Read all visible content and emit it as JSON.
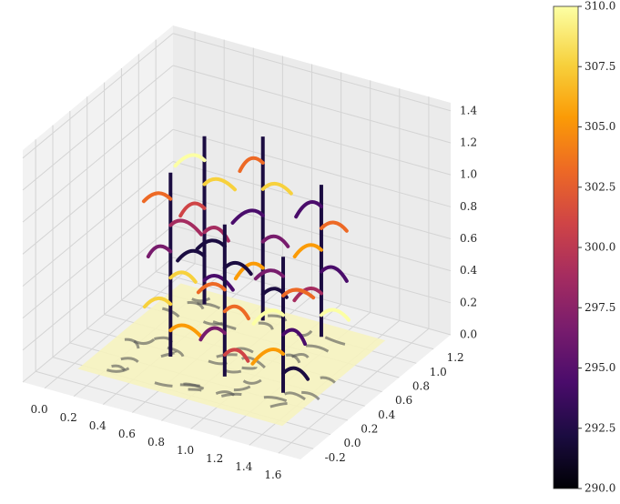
{
  "chart_data": {
    "type": "surface3d",
    "colormap": "inferno",
    "xlim": [
      -0.15,
      1.75
    ],
    "ylim": [
      -0.35,
      1.4
    ],
    "zlim": [
      0,
      1.45
    ],
    "xticks": [
      {
        "value": 0,
        "label": "0.0"
      },
      {
        "value": 0.2,
        "label": "0.2"
      },
      {
        "value": 0.4,
        "label": "0.4"
      },
      {
        "value": 0.6,
        "label": "0.6"
      },
      {
        "value": 0.8,
        "label": "0.8"
      },
      {
        "value": 1.0,
        "label": "1.0"
      },
      {
        "value": 1.2,
        "label": "1.2"
      },
      {
        "value": 1.4,
        "label": "1.4"
      },
      {
        "value": 1.6,
        "label": "1.6"
      }
    ],
    "yticks": [
      {
        "value": -0.2,
        "label": "-0.2"
      },
      {
        "value": 0,
        "label": "0.0"
      },
      {
        "value": 0.2,
        "label": "0.2"
      },
      {
        "value": 0.4,
        "label": "0.4"
      },
      {
        "value": 0.6,
        "label": "0.6"
      },
      {
        "value": 0.8,
        "label": "0.8"
      },
      {
        "value": 1.0,
        "label": "1.0"
      },
      {
        "value": 1.2,
        "label": "1.2"
      }
    ],
    "zticks": [
      {
        "value": 0,
        "label": "0.0"
      },
      {
        "value": 0.2,
        "label": "0.2"
      },
      {
        "value": 0.4,
        "label": "0.4"
      },
      {
        "value": 0.6,
        "label": "0.6"
      },
      {
        "value": 0.8,
        "label": "0.8"
      },
      {
        "value": 1.0,
        "label": "1.0"
      },
      {
        "value": 1.2,
        "label": "1.2"
      },
      {
        "value": 1.4,
        "label": "1.4"
      }
    ],
    "colorbar": {
      "clim": [
        290,
        310
      ],
      "ticks": [
        {
          "value": 290,
          "label": "290.0"
        },
        {
          "value": 292.5,
          "label": "292.5"
        },
        {
          "value": 295,
          "label": "295.0"
        },
        {
          "value": 297.5,
          "label": "297.5"
        },
        {
          "value": 300,
          "label": "300.0"
        },
        {
          "value": 302.5,
          "label": "302.5"
        },
        {
          "value": 305,
          "label": "305.0"
        },
        {
          "value": 307.5,
          "label": "307.5"
        },
        {
          "value": 310,
          "label": "310.0"
        }
      ]
    }
  }
}
